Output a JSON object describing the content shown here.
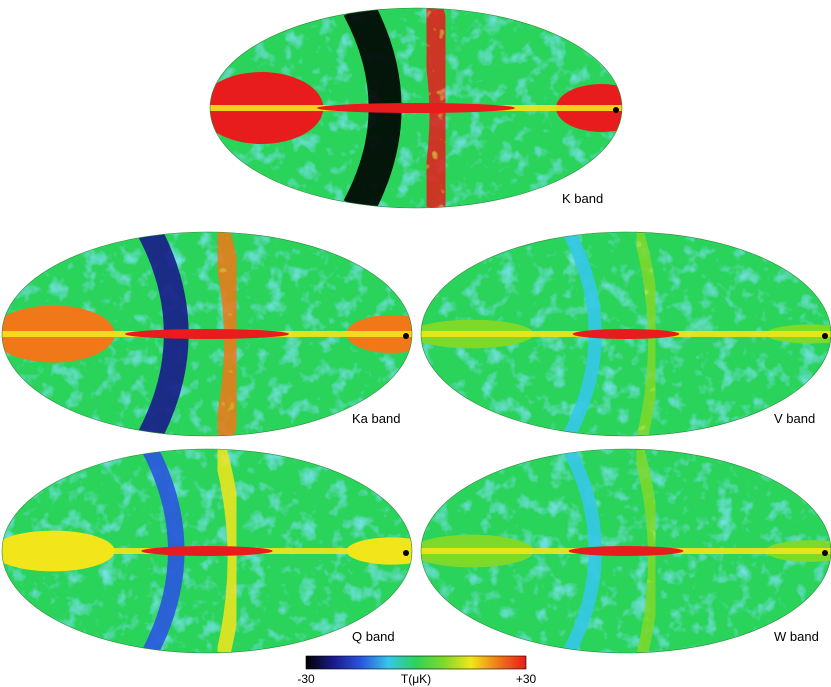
{
  "chart_data": {
    "type": "heatmap",
    "colorbar": {
      "min_label": "-30",
      "max_label": "+30",
      "unit_label": "T(μK)",
      "range": [
        -30,
        30
      ],
      "colors": [
        "#000000",
        "#1a1a8c",
        "#2a55e0",
        "#35c8e8",
        "#2bd35a",
        "#7fd92a",
        "#f2e61a",
        "#f07818",
        "#e81c1c"
      ]
    },
    "maps": [
      {
        "band": "K band",
        "galactic_plane_level": 30,
        "foreground_level": 30,
        "spur_level": 1.0
      },
      {
        "band": "Ka band",
        "galactic_plane_level": 30,
        "foreground_level": 22,
        "spur_level": 0.75
      },
      {
        "band": "V band",
        "galactic_plane_level": 30,
        "foreground_level": 8,
        "spur_level": 0.2
      },
      {
        "band": "Q band",
        "galactic_plane_level": 30,
        "foreground_level": 14,
        "spur_level": 0.5
      },
      {
        "band": "W band",
        "galactic_plane_level": 30,
        "foreground_level": 10,
        "spur_level": 0.15
      }
    ]
  }
}
